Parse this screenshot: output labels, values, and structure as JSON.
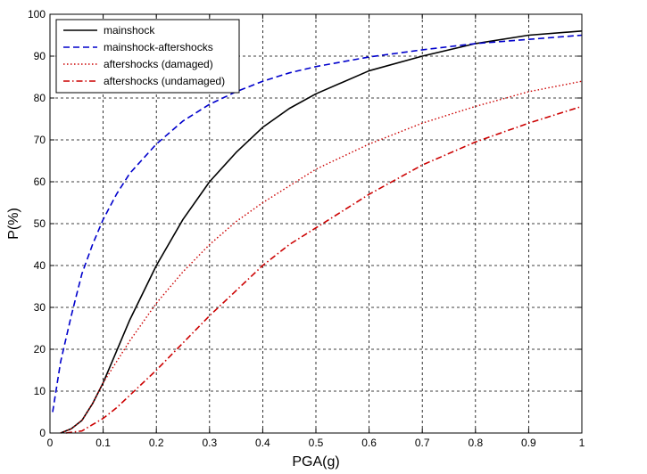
{
  "chart_data": {
    "type": "line",
    "title": "",
    "xlabel": "PGA(g)",
    "ylabel": "P(%)",
    "xlim": [
      0,
      1
    ],
    "ylim": [
      0,
      100
    ],
    "xticks": [
      0,
      0.1,
      0.2,
      0.3,
      0.4,
      0.5,
      0.6,
      0.7,
      0.8,
      0.9,
      1
    ],
    "xtick_labels": [
      "0",
      "0.1",
      "0.2",
      "0.3",
      "0.4",
      "0.5",
      "0.6",
      "0.7",
      "0.8",
      "0.9",
      "1"
    ],
    "yticks": [
      0,
      10,
      20,
      30,
      40,
      50,
      60,
      70,
      80,
      90,
      100
    ],
    "ytick_labels": [
      "0",
      "10",
      "20",
      "30",
      "40",
      "50",
      "60",
      "70",
      "80",
      "90",
      "100"
    ],
    "grid": true,
    "legend_position": "top-left",
    "series": [
      {
        "name": "mainshock",
        "color": "#000000",
        "style": "solid",
        "x": [
          0.02,
          0.04,
          0.06,
          0.08,
          0.1,
          0.12,
          0.15,
          0.2,
          0.25,
          0.3,
          0.35,
          0.4,
          0.45,
          0.5,
          0.6,
          0.7,
          0.8,
          0.9,
          1.0
        ],
        "y": [
          0,
          1,
          3,
          7,
          12,
          18,
          27,
          40,
          51,
          60,
          67,
          73,
          77.5,
          81,
          86.5,
          90,
          93,
          95,
          96
        ]
      },
      {
        "name": "mainshock-aftershocks",
        "color": "#0000cc",
        "style": "dashed",
        "x": [
          0.005,
          0.02,
          0.04,
          0.06,
          0.08,
          0.1,
          0.125,
          0.15,
          0.2,
          0.25,
          0.3,
          0.35,
          0.4,
          0.45,
          0.5,
          0.6,
          0.7,
          0.8,
          0.9,
          1.0
        ],
        "y": [
          5,
          17,
          28,
          38,
          45,
          51,
          57,
          62,
          69,
          74.5,
          78.5,
          81.5,
          84,
          86,
          87.5,
          89.8,
          91.5,
          93,
          94,
          95
        ]
      },
      {
        "name": "aftershocks (damaged)",
        "color": "#cc0000",
        "style": "dotted",
        "x": [
          0.02,
          0.04,
          0.06,
          0.08,
          0.1,
          0.12,
          0.15,
          0.2,
          0.25,
          0.3,
          0.35,
          0.4,
          0.45,
          0.5,
          0.6,
          0.7,
          0.8,
          0.9,
          1.0
        ],
        "y": [
          0,
          1,
          3,
          7,
          12,
          16,
          22,
          31,
          38.5,
          45,
          50.5,
          55,
          59,
          63,
          69,
          74,
          78,
          81.5,
          84
        ]
      },
      {
        "name": "aftershocks (undamaged)",
        "color": "#cc0000",
        "style": "dashdot",
        "x": [
          0.03,
          0.06,
          0.08,
          0.1,
          0.125,
          0.15,
          0.2,
          0.25,
          0.3,
          0.35,
          0.4,
          0.45,
          0.5,
          0.6,
          0.7,
          0.8,
          0.9,
          1.0
        ],
        "y": [
          0,
          0.5,
          2,
          3.5,
          6,
          9,
          15,
          21.5,
          28,
          34,
          40,
          45,
          49,
          57,
          64,
          69.5,
          74,
          78
        ]
      }
    ]
  }
}
